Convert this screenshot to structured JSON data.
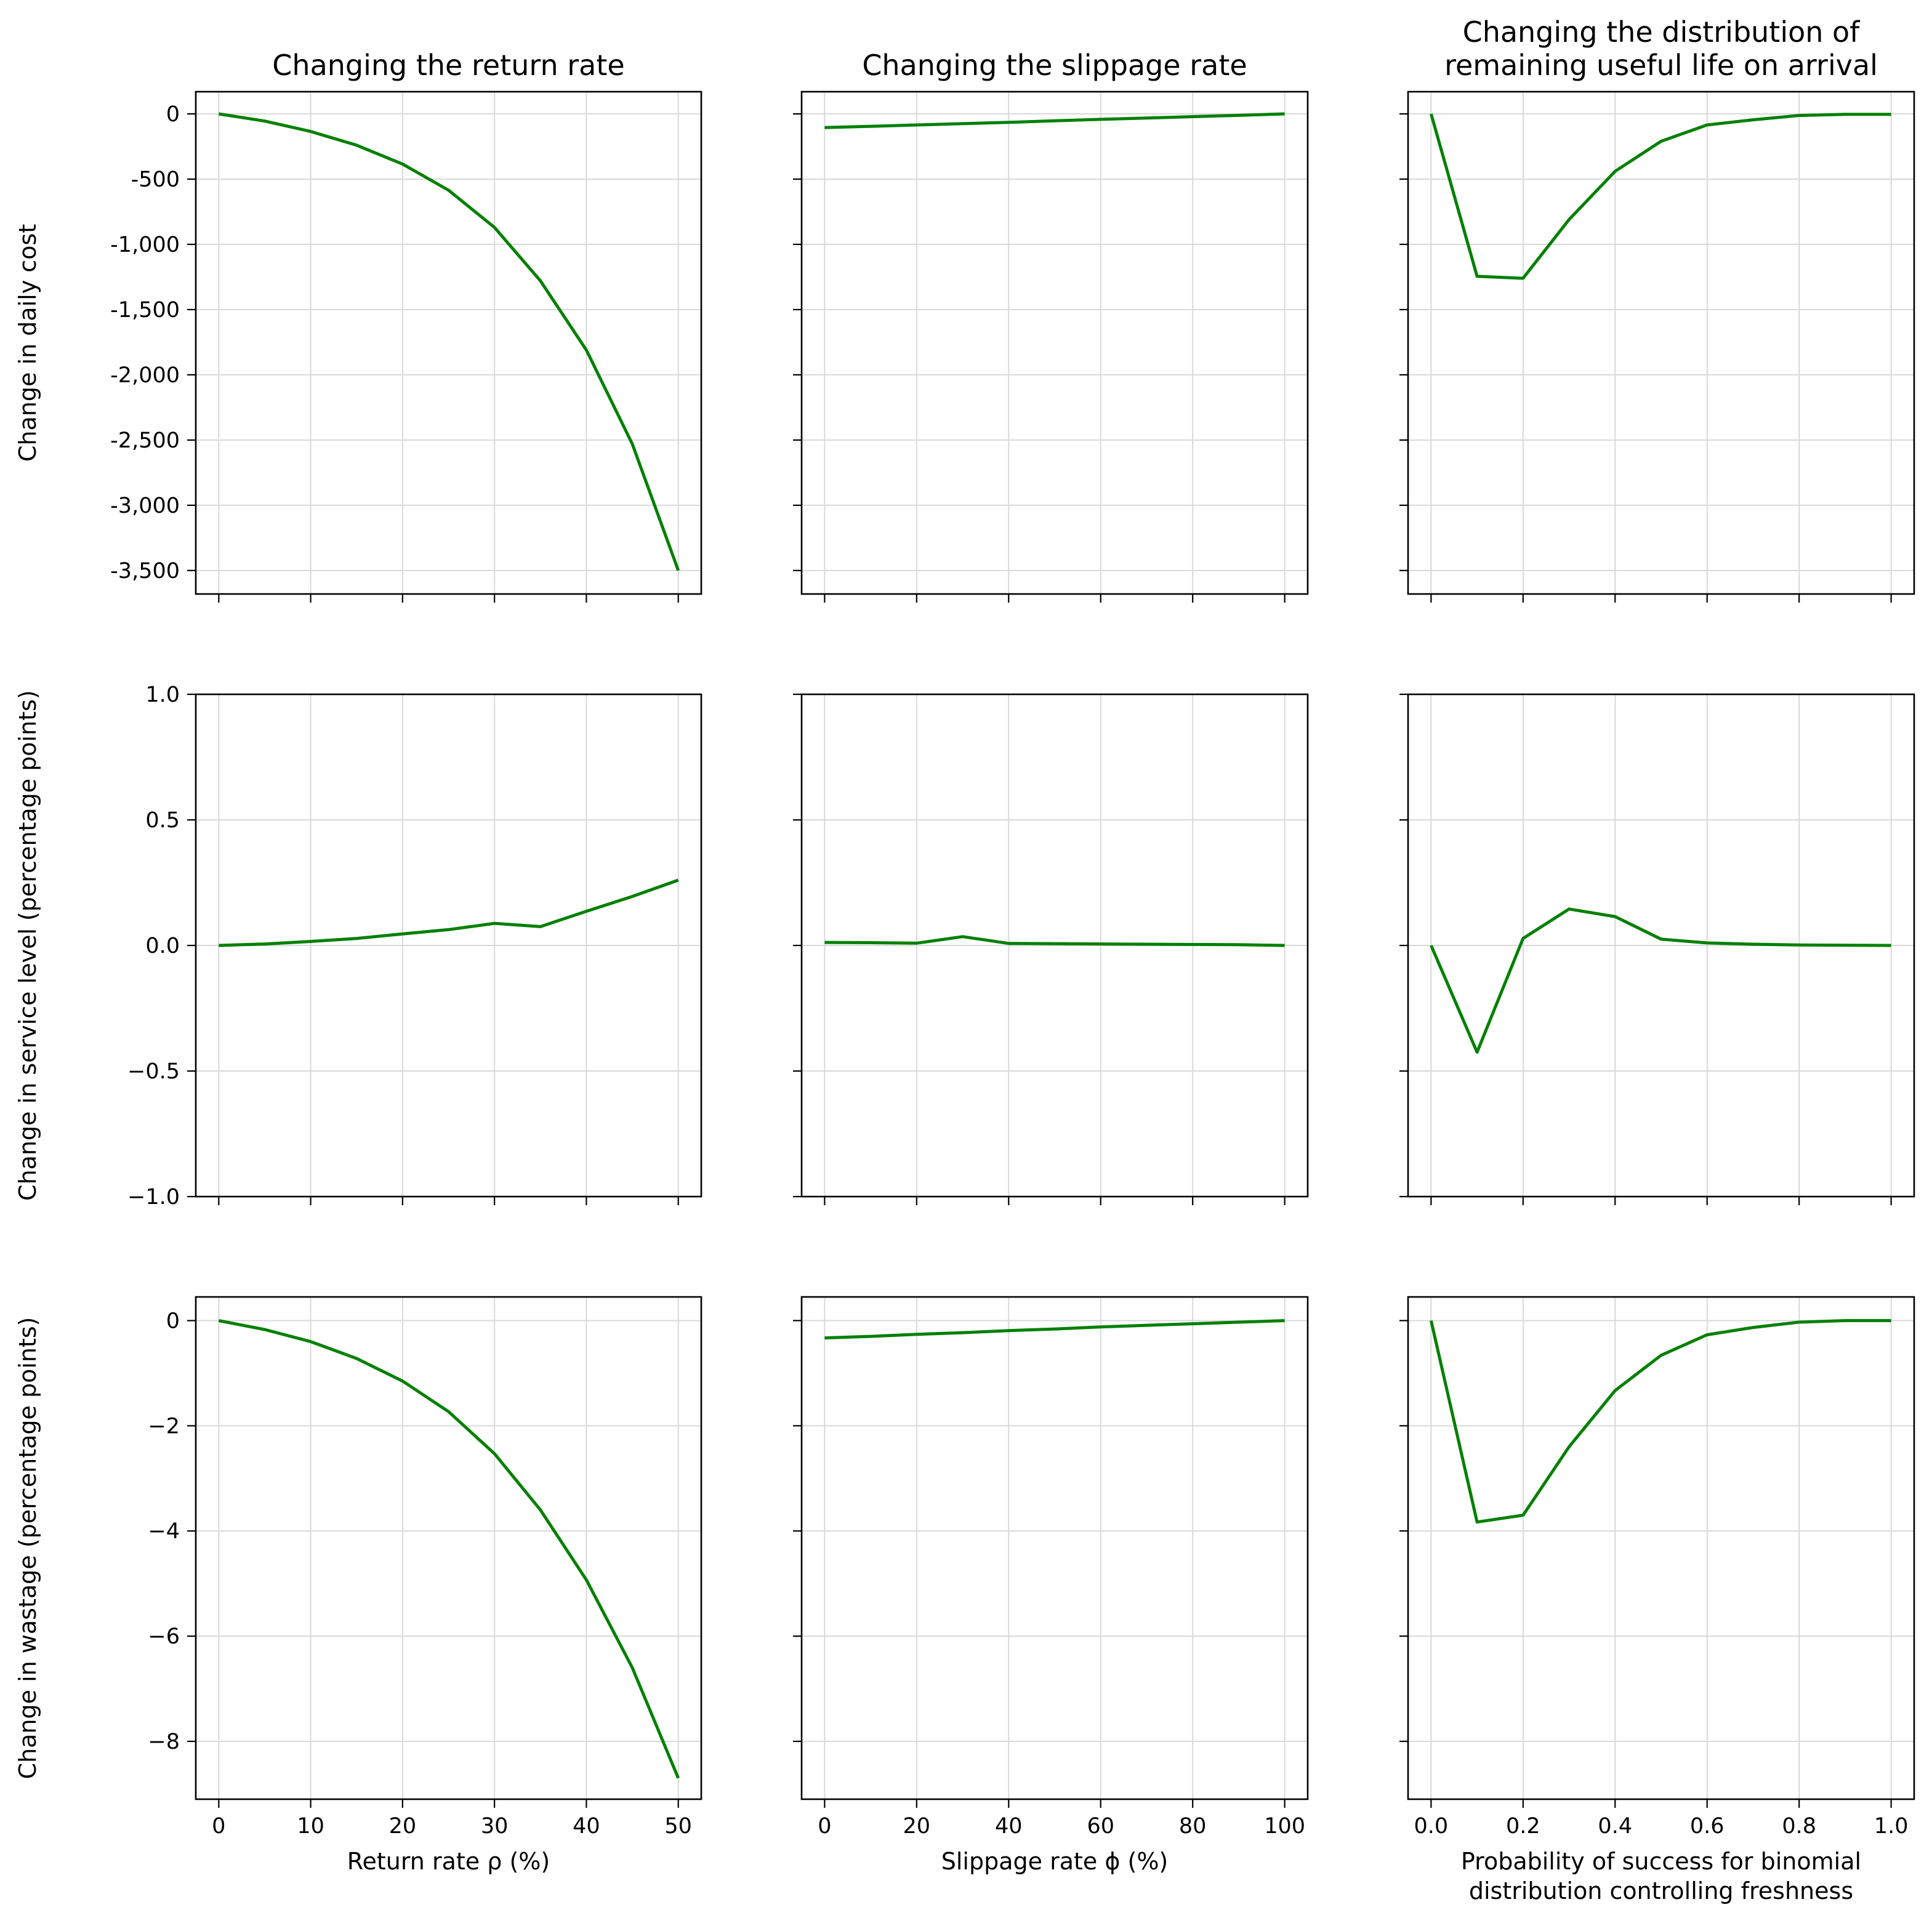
{
  "colors": {
    "line": "#008000",
    "grid": "#d9d9d9",
    "axes": "#000000"
  },
  "chart_data": {
    "type": "line",
    "layout": "3x3 grid of line charts",
    "shared_y_per_row": true,
    "columns": [
      {
        "title": [
          "Changing the return rate"
        ],
        "xlabel": [
          "Return rate ρ (%)"
        ],
        "x": [
          0,
          5,
          10,
          15,
          20,
          25,
          30,
          35,
          40,
          45,
          50
        ],
        "xlim": [
          -2.5,
          52.5
        ],
        "xticks": [
          0,
          10,
          20,
          30,
          40,
          50
        ],
        "xtick_labels": [
          "0",
          "10",
          "20",
          "30",
          "40",
          "50"
        ]
      },
      {
        "title": [
          "Changing the slippage rate"
        ],
        "xlabel": [
          "Slippage rate ϕ (%)"
        ],
        "x": [
          0,
          10,
          20,
          30,
          40,
          50,
          60,
          70,
          80,
          90,
          100
        ],
        "xlim": [
          -5,
          105
        ],
        "xticks": [
          0,
          20,
          40,
          60,
          80,
          100
        ],
        "xtick_labels": [
          "0",
          "20",
          "40",
          "60",
          "80",
          "100"
        ]
      },
      {
        "title": [
          "Changing the distribution of",
          "remaining useful life on arrival"
        ],
        "xlabel": [
          "Probability of success for binomial",
          "distribution controlling freshness"
        ],
        "x": [
          0.0,
          0.1,
          0.2,
          0.3,
          0.4,
          0.5,
          0.6,
          0.7,
          0.8,
          0.9,
          1.0
        ],
        "xlim": [
          -0.05,
          1.05
        ],
        "xticks": [
          0.0,
          0.2,
          0.4,
          0.6,
          0.8,
          1.0
        ],
        "xtick_labels": [
          "0.0",
          "0.2",
          "0.4",
          "0.6",
          "0.8",
          "1.0"
        ]
      }
    ],
    "rows": [
      {
        "ylabel": "Change in daily cost",
        "ylim": [
          -3680,
          170
        ],
        "yticks": [
          0,
          -500,
          -1000,
          -1500,
          -2000,
          -2500,
          -3000,
          -3500
        ],
        "ytick_labels": [
          "0",
          "-500",
          "-1,000",
          "-1,500",
          "-2,000",
          "-2,500",
          "-3,000",
          "-3,500"
        ],
        "series": [
          [
            0,
            -55,
            -135,
            -240,
            -385,
            -585,
            -870,
            -1280,
            -1810,
            -2530,
            -3500
          ],
          [
            -105,
            -95,
            -85,
            -75,
            -65,
            -53,
            -42,
            -32,
            -21,
            -11,
            0
          ],
          [
            0,
            -1245,
            -1260,
            -810,
            -440,
            -210,
            -85,
            -45,
            -12,
            -3,
            -3
          ]
        ]
      },
      {
        "ylabel": "Change in service level (percentage points)",
        "ylim": [
          -1.0,
          1.0
        ],
        "yticks": [
          1.0,
          0.5,
          0.0,
          -0.5,
          -1.0
        ],
        "ytick_labels": [
          "1.0",
          "0.5",
          "0.0",
          "−0.5",
          "−1.0"
        ],
        "series": [
          [
            0.0,
            0.006,
            0.016,
            0.028,
            0.046,
            0.063,
            0.088,
            0.075,
            0.136,
            0.195,
            0.26
          ],
          [
            0.012,
            0.011,
            0.009,
            0.035,
            0.008,
            0.007,
            0.006,
            0.005,
            0.004,
            0.003,
            0.0
          ],
          [
            0.0,
            -0.425,
            0.028,
            0.145,
            0.115,
            0.025,
            0.01,
            0.005,
            0.002,
            0.001,
            0.0
          ]
        ]
      },
      {
        "ylabel": "Change in wastage (percentage points)",
        "ylim": [
          -9.1,
          0.45
        ],
        "yticks": [
          0,
          -2,
          -4,
          -6,
          -8
        ],
        "ytick_labels": [
          "0",
          "−2",
          "−4",
          "−6",
          "−8"
        ],
        "series": [
          [
            0.0,
            -0.17,
            -0.4,
            -0.72,
            -1.15,
            -1.73,
            -2.53,
            -3.6,
            -4.93,
            -6.6,
            -8.7
          ],
          [
            -0.33,
            -0.3,
            -0.26,
            -0.23,
            -0.19,
            -0.16,
            -0.12,
            -0.09,
            -0.06,
            -0.03,
            0.0
          ],
          [
            0.0,
            -3.83,
            -3.7,
            -2.4,
            -1.33,
            -0.66,
            -0.27,
            -0.13,
            -0.03,
            0.0,
            0.0
          ]
        ]
      }
    ]
  }
}
